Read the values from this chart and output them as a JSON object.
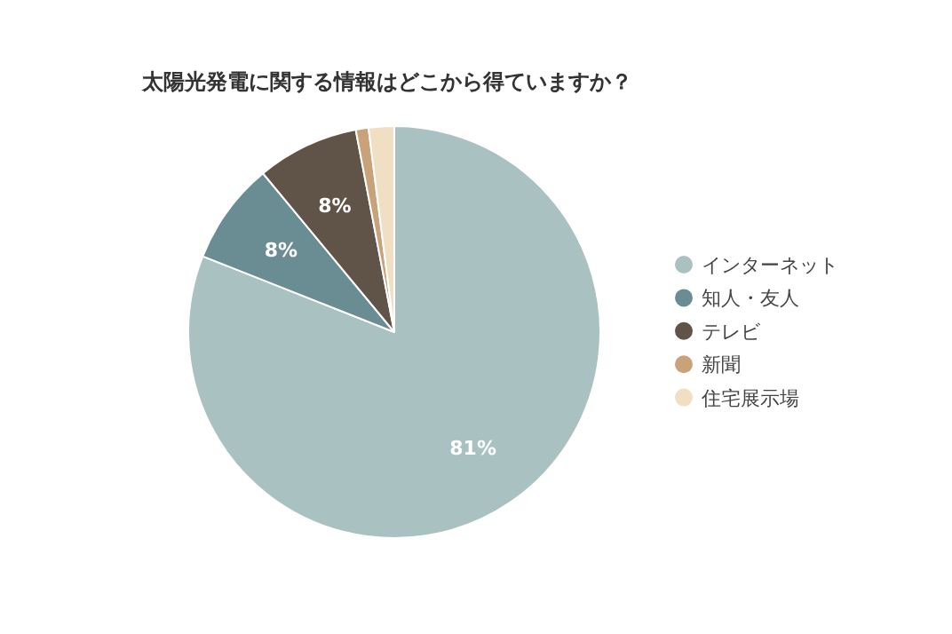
{
  "chart_data": {
    "type": "pie",
    "title": "太陽光発電に関する情報はどこから得ていますか？",
    "categories": [
      "インターネット",
      "知人・友人",
      "テレビ",
      "新聞",
      "住宅展示場"
    ],
    "values": [
      81,
      8,
      8,
      1,
      2
    ],
    "value_labels": [
      "81%",
      "8%",
      "8%",
      null,
      null
    ],
    "colors": [
      "#a9c1c1",
      "#6a8d94",
      "#605449",
      "#c9a27a",
      "#f0dfc3"
    ],
    "legend": "right"
  }
}
